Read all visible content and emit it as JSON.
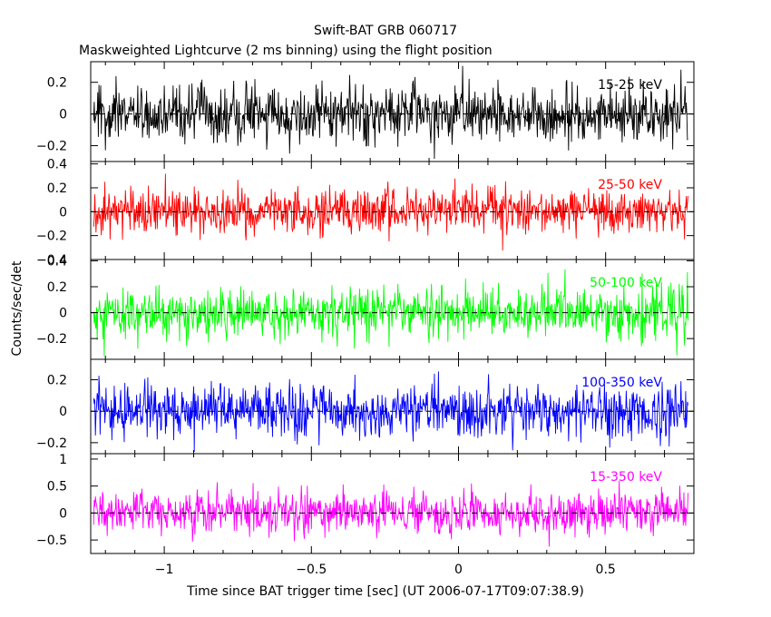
{
  "chart_data": {
    "type": "line",
    "title": "Swift-BAT GRB 060717",
    "subtitle": "Maskweighted Lightcurve (2 ms binning) using the flight position",
    "xlabel": "Time since BAT trigger time [sec] (UT 2006-07-17T09:07:38.9)",
    "ylabel": "Counts/sec/det",
    "xlim": [
      -1.25,
      0.8
    ],
    "xticks": [
      -1,
      -0.5,
      0,
      0.5
    ],
    "xtick_labels": [
      "−1",
      "−0.5",
      "0",
      "0.5"
    ],
    "x_start": -1.24,
    "x_end": 0.78,
    "bin_width_sec": 0.002,
    "panels": [
      {
        "name": "15-25 keV",
        "color": "#000000",
        "ylim": [
          -0.3,
          0.33
        ],
        "yticks": [
          -0.2,
          0,
          0.2
        ],
        "ytick_labels": [
          "−0.2",
          "0",
          "0.2"
        ],
        "noise_amplitude": 0.09,
        "clip": [
          -0.33,
          0.33
        ]
      },
      {
        "name": "25-50 keV",
        "color": "#ff0000",
        "ylim": [
          -0.4,
          0.42
        ],
        "yticks": [
          -0.4,
          -0.2,
          0,
          0.2,
          0.4
        ],
        "ytick_labels": [
          "−0.4",
          "−0.2",
          "0",
          "0.2",
          "0.4"
        ],
        "noise_amplitude": 0.1,
        "clip": [
          -0.4,
          0.42
        ]
      },
      {
        "name": "50-100 keV",
        "color": "#00ff00",
        "ylim": [
          -0.36,
          0.41
        ],
        "yticks": [
          -0.2,
          0,
          0.2,
          0.4
        ],
        "ytick_labels": [
          "−0.2",
          "0",
          "0.2",
          "0.4"
        ],
        "noise_amplitude": 0.1,
        "clip": [
          -0.36,
          0.41
        ]
      },
      {
        "name": "100-350 keV",
        "color": "#0000ff",
        "ylim": [
          -0.27,
          0.33
        ],
        "yticks": [
          -0.2,
          0,
          0.2
        ],
        "ytick_labels": [
          "−0.2",
          "0",
          "0.2"
        ],
        "noise_amplitude": 0.085,
        "clip": [
          -0.27,
          0.33
        ]
      },
      {
        "name": "15-350 keV",
        "color": "#ff00ff",
        "ylim": [
          -0.75,
          1.1
        ],
        "yticks": [
          -0.5,
          0,
          0.5,
          1
        ],
        "ytick_labels": [
          "−0.5",
          "0",
          "0.5",
          "1"
        ],
        "noise_amplitude": 0.2,
        "clip": [
          -0.75,
          1.1
        ]
      }
    ],
    "legend": "inside each panel, top-right",
    "grid": false,
    "zero_line": "dashed"
  }
}
